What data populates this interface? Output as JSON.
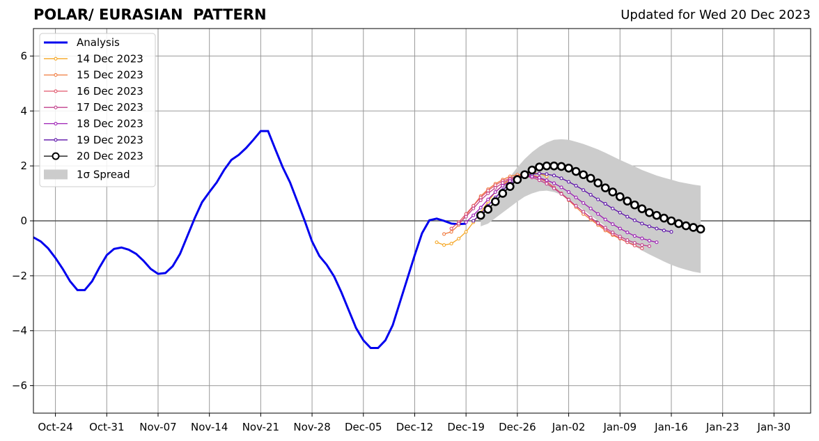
{
  "header": {
    "title": "POLAR/ EURASIAN  PATTERN",
    "updated": "Updated for Wed 20 Dec 2023"
  },
  "chart_data": {
    "type": "line",
    "title": "POLAR/ EURASIAN  PATTERN",
    "subtitle": "Updated for Wed 20 Dec 2023",
    "xlabel": "",
    "ylabel": "",
    "xlim": [
      "2023-10-21",
      "2024-02-04"
    ],
    "ylim": [
      -7,
      7
    ],
    "grid": true,
    "legend_position": "top-left",
    "x_ticks": [
      "Oct-24",
      "Oct-31",
      "Nov-07",
      "Nov-14",
      "Nov-21",
      "Nov-28",
      "Dec-05",
      "Dec-12",
      "Dec-19",
      "Dec-26",
      "Jan-02",
      "Jan-09",
      "Jan-16",
      "Jan-23",
      "Jan-30"
    ],
    "y_ticks": [
      "6",
      "4",
      "2",
      "0",
      "−2",
      "−4",
      "−6"
    ],
    "series": [
      {
        "name": "Analysis",
        "color": "#0000ee",
        "start_date": "2023-10-21",
        "values": [
          -0.6,
          -0.75,
          -1.0,
          -1.35,
          -1.75,
          -2.2,
          -2.52,
          -2.52,
          -2.2,
          -1.7,
          -1.25,
          -1.02,
          -0.97,
          -1.05,
          -1.2,
          -1.45,
          -1.75,
          -1.93,
          -1.9,
          -1.65,
          -1.2,
          -0.55,
          0.1,
          0.68,
          1.05,
          1.4,
          1.85,
          2.22,
          2.4,
          2.65,
          2.95,
          3.27,
          3.27,
          2.6,
          1.95,
          1.4,
          0.7,
          0.0,
          -0.75,
          -1.28,
          -1.6,
          -2.02,
          -2.6,
          -3.25,
          -3.9,
          -4.35,
          -4.63,
          -4.63,
          -4.35,
          -3.8,
          -2.95,
          -2.1,
          -1.25,
          -0.45,
          0.02,
          0.08,
          0.0,
          -0.1,
          -0.12,
          -0.1
        ]
      },
      {
        "name": "14 Dec 2023",
        "color": "#f5a623",
        "start_date": "2023-12-15",
        "values": [
          -0.78,
          -0.88,
          -0.83,
          -0.65,
          -0.4,
          -0.05,
          0.3,
          0.7,
          1.05,
          1.3,
          1.52,
          1.65,
          1.72,
          1.75,
          1.72,
          1.62
        ]
      },
      {
        "name": "15 Dec 2023",
        "color": "#f07b3f",
        "start_date": "2023-12-16",
        "values": [
          -0.48,
          -0.4,
          -0.15,
          0.2,
          0.55,
          0.9,
          1.15,
          1.35,
          1.5,
          1.62,
          1.68,
          1.7,
          1.68,
          1.58,
          1.42,
          1.2,
          0.98,
          0.75,
          0.5,
          0.25,
          0.05,
          -0.15,
          -0.35,
          -0.52,
          -0.65,
          -0.78,
          -0.88
        ]
      },
      {
        "name": "16 Dec 2023",
        "color": "#e0556a",
        "start_date": "2023-12-17",
        "values": [
          -0.28,
          -0.05,
          0.25,
          0.55,
          0.85,
          1.1,
          1.3,
          1.45,
          1.55,
          1.62,
          1.65,
          1.62,
          1.55,
          1.42,
          1.22,
          1.0,
          0.78,
          0.55,
          0.33,
          0.1,
          -0.1,
          -0.3,
          -0.48,
          -0.63,
          -0.78,
          -0.9,
          -1.0
        ]
      },
      {
        "name": "17 Dec 2023",
        "color": "#c2408c",
        "start_date": "2023-12-18",
        "values": [
          -0.1,
          0.15,
          0.45,
          0.75,
          1.0,
          1.2,
          1.38,
          1.52,
          1.6,
          1.62,
          1.58,
          1.48,
          1.35,
          1.18,
          0.98,
          0.77,
          0.55,
          0.33,
          0.12,
          -0.08,
          -0.25,
          -0.42,
          -0.57,
          -0.7,
          -0.8,
          -0.88,
          -0.92
        ]
      },
      {
        "name": "18 Dec 2023",
        "color": "#9b1ab3",
        "start_date": "2023-12-19",
        "values": [
          -0.05,
          0.2,
          0.48,
          0.78,
          1.05,
          1.28,
          1.45,
          1.57,
          1.62,
          1.62,
          1.57,
          1.48,
          1.37,
          1.22,
          1.05,
          0.85,
          0.65,
          0.45,
          0.25,
          0.05,
          -0.12,
          -0.28,
          -0.42,
          -0.55,
          -0.64,
          -0.72,
          -0.78
        ]
      },
      {
        "name": "19 Dec 2023",
        "color": "#5b0fa8",
        "start_date": "2023-12-20",
        "values": [
          0.0,
          0.25,
          0.55,
          0.85,
          1.12,
          1.35,
          1.52,
          1.63,
          1.7,
          1.72,
          1.7,
          1.65,
          1.55,
          1.42,
          1.28,
          1.12,
          0.95,
          0.78,
          0.62,
          0.45,
          0.3,
          0.15,
          0.02,
          -0.1,
          -0.2,
          -0.28,
          -0.35,
          -0.4
        ]
      },
      {
        "name": "20 Dec 2023",
        "color": "#000000",
        "start_date": "2023-12-21",
        "values": [
          0.2,
          0.42,
          0.7,
          1.0,
          1.25,
          1.5,
          1.68,
          1.85,
          1.96,
          2.0,
          2.0,
          1.98,
          1.92,
          1.8,
          1.68,
          1.55,
          1.38,
          1.2,
          1.05,
          0.88,
          0.72,
          0.58,
          0.44,
          0.3,
          0.2,
          0.1,
          0.0,
          -0.1,
          -0.18,
          -0.24,
          -0.3
        ]
      }
    ],
    "spread": {
      "name": "1σ Spread",
      "color": "#cccccc",
      "start_date": "2023-12-21",
      "upper": [
        0.05,
        0.35,
        0.75,
        1.2,
        1.6,
        1.95,
        2.25,
        2.5,
        2.7,
        2.85,
        2.95,
        2.97,
        2.95,
        2.88,
        2.8,
        2.7,
        2.6,
        2.48,
        2.35,
        2.22,
        2.1,
        1.98,
        1.85,
        1.75,
        1.65,
        1.57,
        1.5,
        1.42,
        1.37,
        1.32,
        1.28
      ],
      "lower": [
        -0.2,
        -0.1,
        0.1,
        0.3,
        0.5,
        0.7,
        0.88,
        1.0,
        1.08,
        1.1,
        1.05,
        0.95,
        0.8,
        0.6,
        0.4,
        0.2,
        0.0,
        -0.2,
        -0.4,
        -0.58,
        -0.76,
        -0.92,
        -1.08,
        -1.22,
        -1.35,
        -1.48,
        -1.6,
        -1.7,
        -1.78,
        -1.85,
        -1.9
      ]
    }
  }
}
